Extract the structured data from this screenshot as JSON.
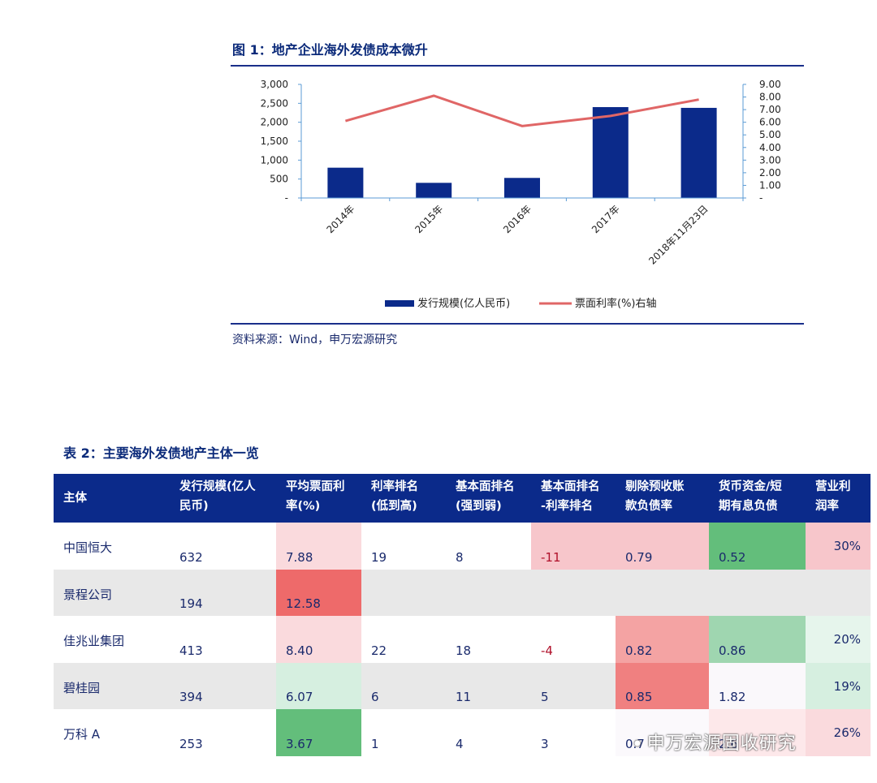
{
  "figure": {
    "title": "图 1：地产企业海外发债成本微升",
    "source": "资料来源：Wind，申万宏源研究"
  },
  "chart_data": {
    "type": "bar+line",
    "categories": [
      "2014年",
      "2015年",
      "2016年",
      "2017年",
      "2018年11月23日"
    ],
    "series": [
      {
        "name": "发行规模(亿人民币)",
        "type": "bar",
        "axis": "left",
        "color": "#0b2a8a",
        "values": [
          800,
          400,
          530,
          2400,
          2380
        ]
      },
      {
        "name": "票面利率(%)右轴",
        "type": "line",
        "axis": "right",
        "color": "#e06666",
        "values": [
          6.1,
          8.1,
          5.7,
          6.5,
          7.8
        ]
      }
    ],
    "y_left": {
      "ylim": [
        0,
        3000
      ],
      "ticks": [
        "-",
        "500",
        "1,000",
        "1,500",
        "2,000",
        "2,500",
        "3,000"
      ]
    },
    "y_right": {
      "ylim": [
        0,
        9
      ],
      "ticks": [
        "-",
        "1.00",
        "2.00",
        "3.00",
        "4.00",
        "5.00",
        "6.00",
        "7.00",
        "8.00",
        "9.00"
      ]
    },
    "legend": "bottom"
  },
  "table": {
    "title": "表 2：主要海外发债地产主体一览",
    "headers": [
      [
        "主体"
      ],
      [
        "发行规模(亿人",
        "民币)"
      ],
      [
        "平均票面利",
        "率(%)"
      ],
      [
        "利率排名",
        "(低到高)"
      ],
      [
        "基本面排名",
        "(强到弱)"
      ],
      [
        "基本面排名",
        "-利率排名"
      ],
      [
        "剔除预收账",
        "款负债率"
      ],
      [
        "货币资金/短",
        "期有息负债"
      ],
      [
        "营业利",
        "润率"
      ]
    ],
    "rows": [
      {
        "name": "中国恒大",
        "scale": "632",
        "rate": "7.88",
        "rate_rank": "19",
        "fund_rank": "8",
        "diff": "-11",
        "debt": "0.79",
        "cash": "0.52",
        "margin": "30%"
      },
      {
        "name": "景程公司",
        "scale": "194",
        "rate": "12.58",
        "rate_rank": "",
        "fund_rank": "",
        "diff": "",
        "debt": "",
        "cash": "",
        "margin": ""
      },
      {
        "name": "佳兆业集团",
        "scale": "413",
        "rate": "8.40",
        "rate_rank": "22",
        "fund_rank": "18",
        "diff": "-4",
        "debt": "0.82",
        "cash": "0.86",
        "margin": "20%"
      },
      {
        "name": "碧桂园",
        "scale": "394",
        "rate": "6.07",
        "rate_rank": "6",
        "fund_rank": "11",
        "diff": "5",
        "debt": "0.85",
        "cash": "1.82",
        "margin": "19%"
      },
      {
        "name": "万科 A",
        "scale": "253",
        "rate": "3.67",
        "rate_rank": "1",
        "fund_rank": "4",
        "diff": "3",
        "debt": "0.7",
        "cash": "2.6",
        "margin": "26%"
      }
    ]
  },
  "watermark": "申万宏源固收研究",
  "colors": {
    "navy": "#0b2a8a",
    "line_red": "#e06666",
    "row_gray": "#e8e8e8",
    "light_pink": "#fadadd",
    "pink": "#f7c6cb",
    "red": "#f08080",
    "strong_red": "#ee6a6a",
    "light_green": "#d6efe0",
    "green": "#9fd6b0",
    "strong_green": "#63be7b"
  }
}
